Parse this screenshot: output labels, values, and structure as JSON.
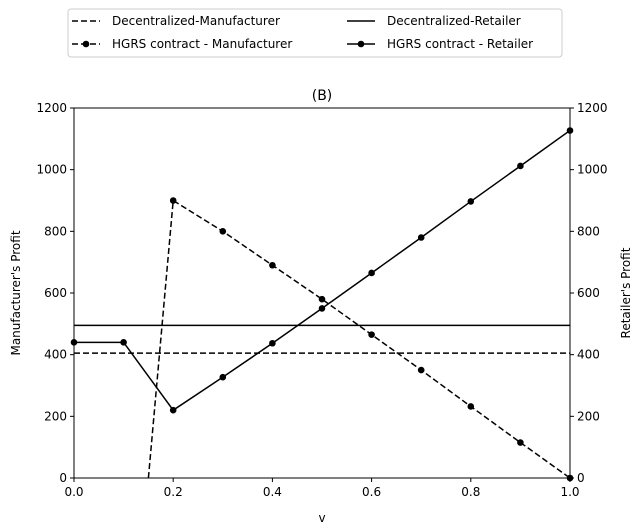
{
  "chart_data": {
    "type": "line",
    "title": "(B)",
    "xlabel": "v",
    "ylabel_left": "Manufacturer's Profit",
    "ylabel_right": "Retailer's Profit",
    "xlim": [
      0,
      1
    ],
    "ylim": [
      0,
      1200
    ],
    "xticks": [
      "0.0",
      "0.2",
      "0.4",
      "0.6",
      "0.8",
      "1.0"
    ],
    "yticks": [
      "0",
      "200",
      "400",
      "600",
      "800",
      "1000",
      "1200"
    ],
    "grid": false,
    "legend_position": "top",
    "series": [
      {
        "name": "Decentralized-Manufacturer",
        "axis": "left",
        "style": "dashed",
        "marker": false,
        "color": "#000000",
        "x": [
          0,
          1
        ],
        "y": [
          405,
          405
        ]
      },
      {
        "name": "HGRS contract - Manufacturer",
        "axis": "left",
        "style": "dashed",
        "marker": true,
        "color": "#000000",
        "x": [
          0.15,
          0.2,
          0.3,
          0.4,
          0.5,
          0.6,
          0.7,
          0.8,
          0.9,
          1.0
        ],
        "y": [
          0,
          900,
          800,
          690,
          580,
          465,
          350,
          232,
          115,
          0
        ],
        "marker_x": [
          0.2,
          0.3,
          0.4,
          0.5,
          0.6,
          0.7,
          0.8,
          0.9,
          1.0
        ]
      },
      {
        "name": "Decentralized-Retailer",
        "axis": "right",
        "style": "solid",
        "marker": false,
        "color": "#000000",
        "x": [
          0,
          1
        ],
        "y": [
          495,
          495
        ]
      },
      {
        "name": "HGRS contract - Retailer",
        "axis": "right",
        "style": "solid",
        "marker": true,
        "color": "#000000",
        "x": [
          0.0,
          0.1,
          0.2,
          0.3,
          0.4,
          0.5,
          0.6,
          0.7,
          0.8,
          0.9,
          1.0
        ],
        "y": [
          440,
          440,
          220,
          327,
          437,
          550,
          665,
          780,
          897,
          1012,
          1127
        ],
        "marker_x": [
          0.0,
          0.1,
          0.2,
          0.3,
          0.4,
          0.5,
          0.6,
          0.7,
          0.8,
          0.9,
          1.0
        ]
      }
    ]
  }
}
